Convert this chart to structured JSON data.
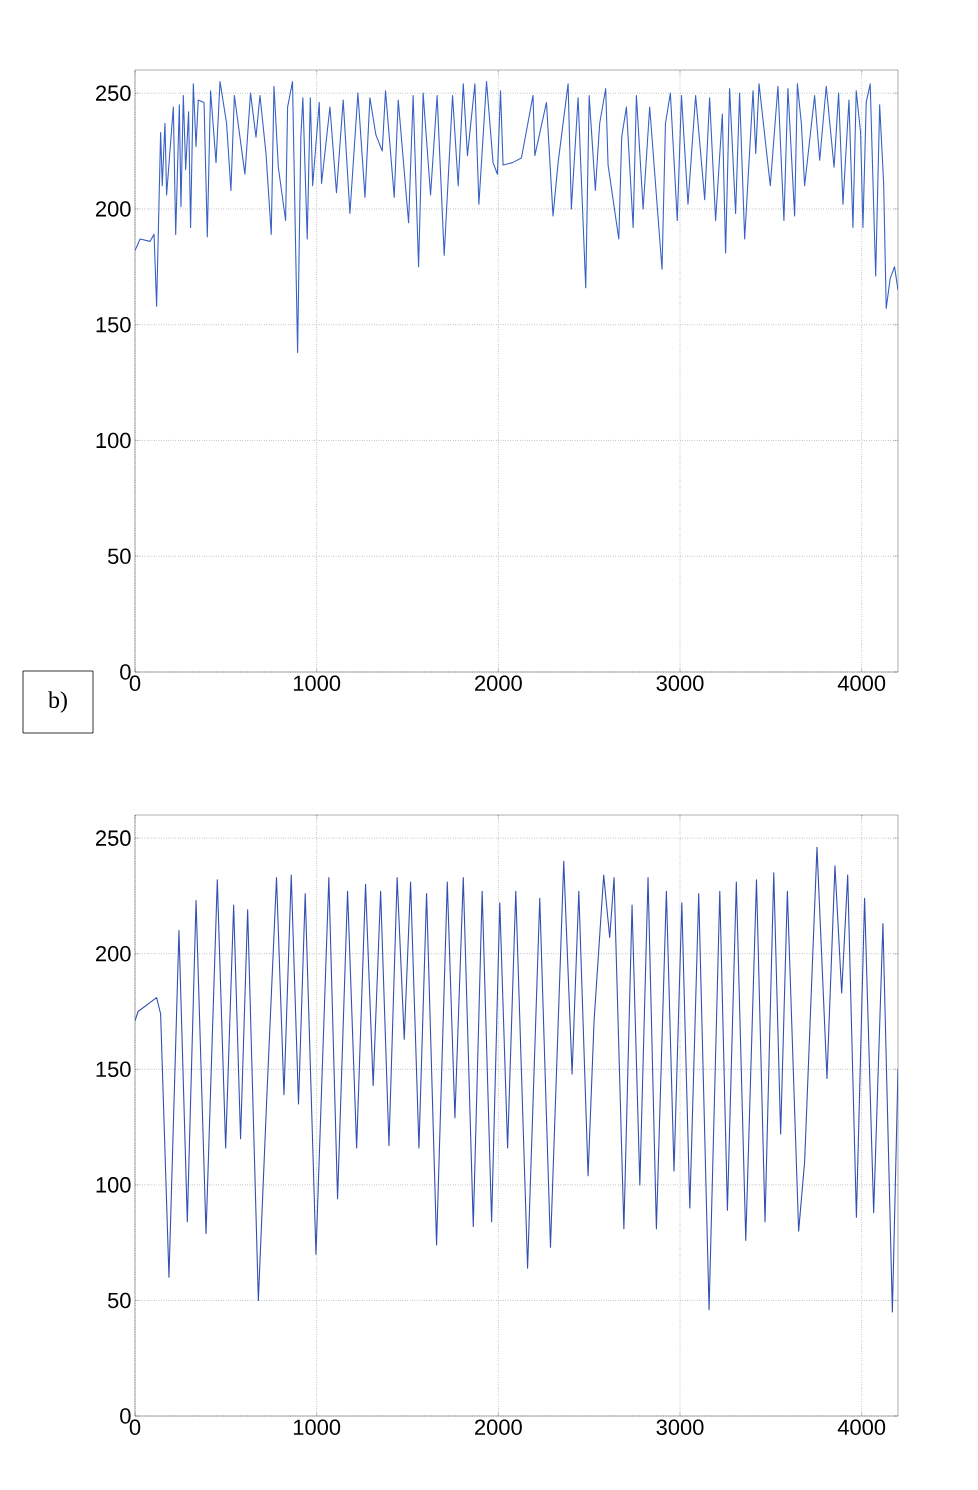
{
  "chart_data": [
    {
      "type": "line",
      "annotations": [
        "b)"
      ],
      "xlim": [
        0,
        4200
      ],
      "ylim": [
        0,
        260
      ],
      "xticks": [
        0,
        1000,
        2000,
        3000,
        4000
      ],
      "yticks": [
        0,
        50,
        100,
        150,
        200,
        250
      ],
      "grid": true,
      "marker": "none",
      "line_style": "solid",
      "series": [
        {
          "color": "#3a62c4",
          "x": [
            0,
            28,
            83,
            105,
            119,
            141,
            150,
            165,
            174,
            211,
            224,
            244,
            253,
            266,
            279,
            295,
            306,
            321,
            336,
            348,
            380,
            398,
            416,
            446,
            468,
            504,
            528,
            547,
            605,
            636,
            666,
            688,
            721,
            750,
            765,
            789,
            829,
            840,
            867,
            895,
            913,
            924,
            948,
            965,
            978,
            1014,
            1027,
            1073,
            1109,
            1146,
            1183,
            1227,
            1266,
            1293,
            1326,
            1361,
            1379,
            1427,
            1449,
            1506,
            1531,
            1561,
            1586,
            1627,
            1663,
            1702,
            1748,
            1779,
            1807,
            1830,
            1871,
            1893,
            1935,
            1971,
            1995,
            2012,
            2026,
            2078,
            2127,
            2191,
            2201,
            2265,
            2301,
            2329,
            2384,
            2402,
            2439,
            2481,
            2500,
            2534,
            2558,
            2591,
            2604,
            2663,
            2679,
            2705,
            2742,
            2760,
            2797,
            2833,
            2901,
            2920,
            2947,
            2985,
            3008,
            3044,
            3086,
            3136,
            3163,
            3196,
            3233,
            3251,
            3273,
            3306,
            3328,
            3356,
            3402,
            3417,
            3435,
            3497,
            3539,
            3572,
            3594,
            3631,
            3646,
            3668,
            3686,
            3741,
            3769,
            3805,
            3848,
            3873,
            3897,
            3930,
            3952,
            3970,
            3994,
            4007,
            4025,
            4047,
            4077,
            4099,
            4121,
            4135,
            4157,
            4181,
            4200
          ],
          "values": [
            182,
            187,
            186,
            189,
            158,
            233,
            210,
            237,
            206,
            244,
            189,
            245,
            201,
            249,
            217,
            242,
            192,
            254,
            227,
            247,
            246,
            188,
            251,
            220,
            255,
            237,
            208,
            249,
            215,
            250,
            231,
            249,
            224,
            189,
            253,
            218,
            195,
            244,
            255,
            138,
            231,
            248,
            187,
            248,
            210,
            246,
            211,
            244,
            207,
            247,
            198,
            250,
            205,
            248,
            232,
            225,
            251,
            205,
            247,
            194,
            249,
            175,
            250,
            206,
            249,
            180,
            249,
            210,
            254,
            223,
            254,
            202,
            255,
            220,
            215,
            251,
            219,
            220,
            222,
            249,
            223,
            246,
            197,
            220,
            254,
            200,
            248,
            166,
            249,
            208,
            237,
            252,
            219,
            187,
            231,
            244,
            192,
            249,
            200,
            244,
            174,
            237,
            250,
            195,
            249,
            202,
            249,
            204,
            248,
            195,
            241,
            181,
            252,
            198,
            250,
            187,
            251,
            224,
            254,
            210,
            253,
            195,
            252,
            197,
            254,
            237,
            210,
            249,
            221,
            253,
            218,
            250,
            202,
            247,
            192,
            251,
            233,
            192,
            246,
            254,
            171,
            245,
            211,
            157,
            170,
            175,
            165
          ]
        }
      ]
    },
    {
      "type": "line",
      "xlim": [
        0,
        4200
      ],
      "ylim": [
        0,
        260
      ],
      "xticks": [
        0,
        1000,
        2000,
        3000,
        4000
      ],
      "yticks": [
        0,
        50,
        100,
        150,
        200,
        250
      ],
      "grid": true,
      "marker": "none",
      "line_style": "solid",
      "series": [
        {
          "color": "#3350b0",
          "x": [
            0,
            17,
            119,
            141,
            187,
            242,
            288,
            336,
            391,
            453,
            499,
            543,
            581,
            620,
            679,
            724,
            779,
            820,
            860,
            900,
            937,
            996,
            1067,
            1115,
            1170,
            1220,
            1269,
            1311,
            1352,
            1398,
            1443,
            1482,
            1517,
            1563,
            1605,
            1660,
            1719,
            1761,
            1807,
            1862,
            1911,
            1963,
            2008,
            2051,
            2096,
            2161,
            2228,
            2287,
            2360,
            2406,
            2443,
            2494,
            2527,
            2580,
            2613,
            2637,
            2691,
            2736,
            2779,
            2824,
            2870,
            2925,
            2967,
            3010,
            3054,
            3103,
            3160,
            3219,
            3261,
            3310,
            3362,
            3421,
            3468,
            3516,
            3554,
            3591,
            3653,
            3686,
            3754,
            3809,
            3853,
            3890,
            3923,
            3971,
            4016,
            4066,
            4117,
            4169,
            4200
          ],
          "values": [
            171,
            175,
            181,
            174,
            60,
            210,
            84,
            223,
            79,
            232,
            116,
            221,
            120,
            219,
            50,
            135,
            233,
            139,
            234,
            135,
            226,
            70,
            233,
            94,
            227,
            116,
            230,
            143,
            227,
            117,
            233,
            163,
            231,
            116,
            226,
            74,
            231,
            129,
            233,
            82,
            227,
            84,
            222,
            116,
            227,
            64,
            224,
            73,
            240,
            148,
            227,
            104,
            171,
            234,
            207,
            233,
            81,
            221,
            100,
            233,
            81,
            227,
            106,
            222,
            90,
            226,
            46,
            227,
            89,
            231,
            76,
            232,
            84,
            235,
            122,
            227,
            80,
            110,
            246,
            146,
            238,
            183,
            234,
            86,
            224,
            88,
            213,
            45,
            150
          ]
        }
      ]
    }
  ]
}
